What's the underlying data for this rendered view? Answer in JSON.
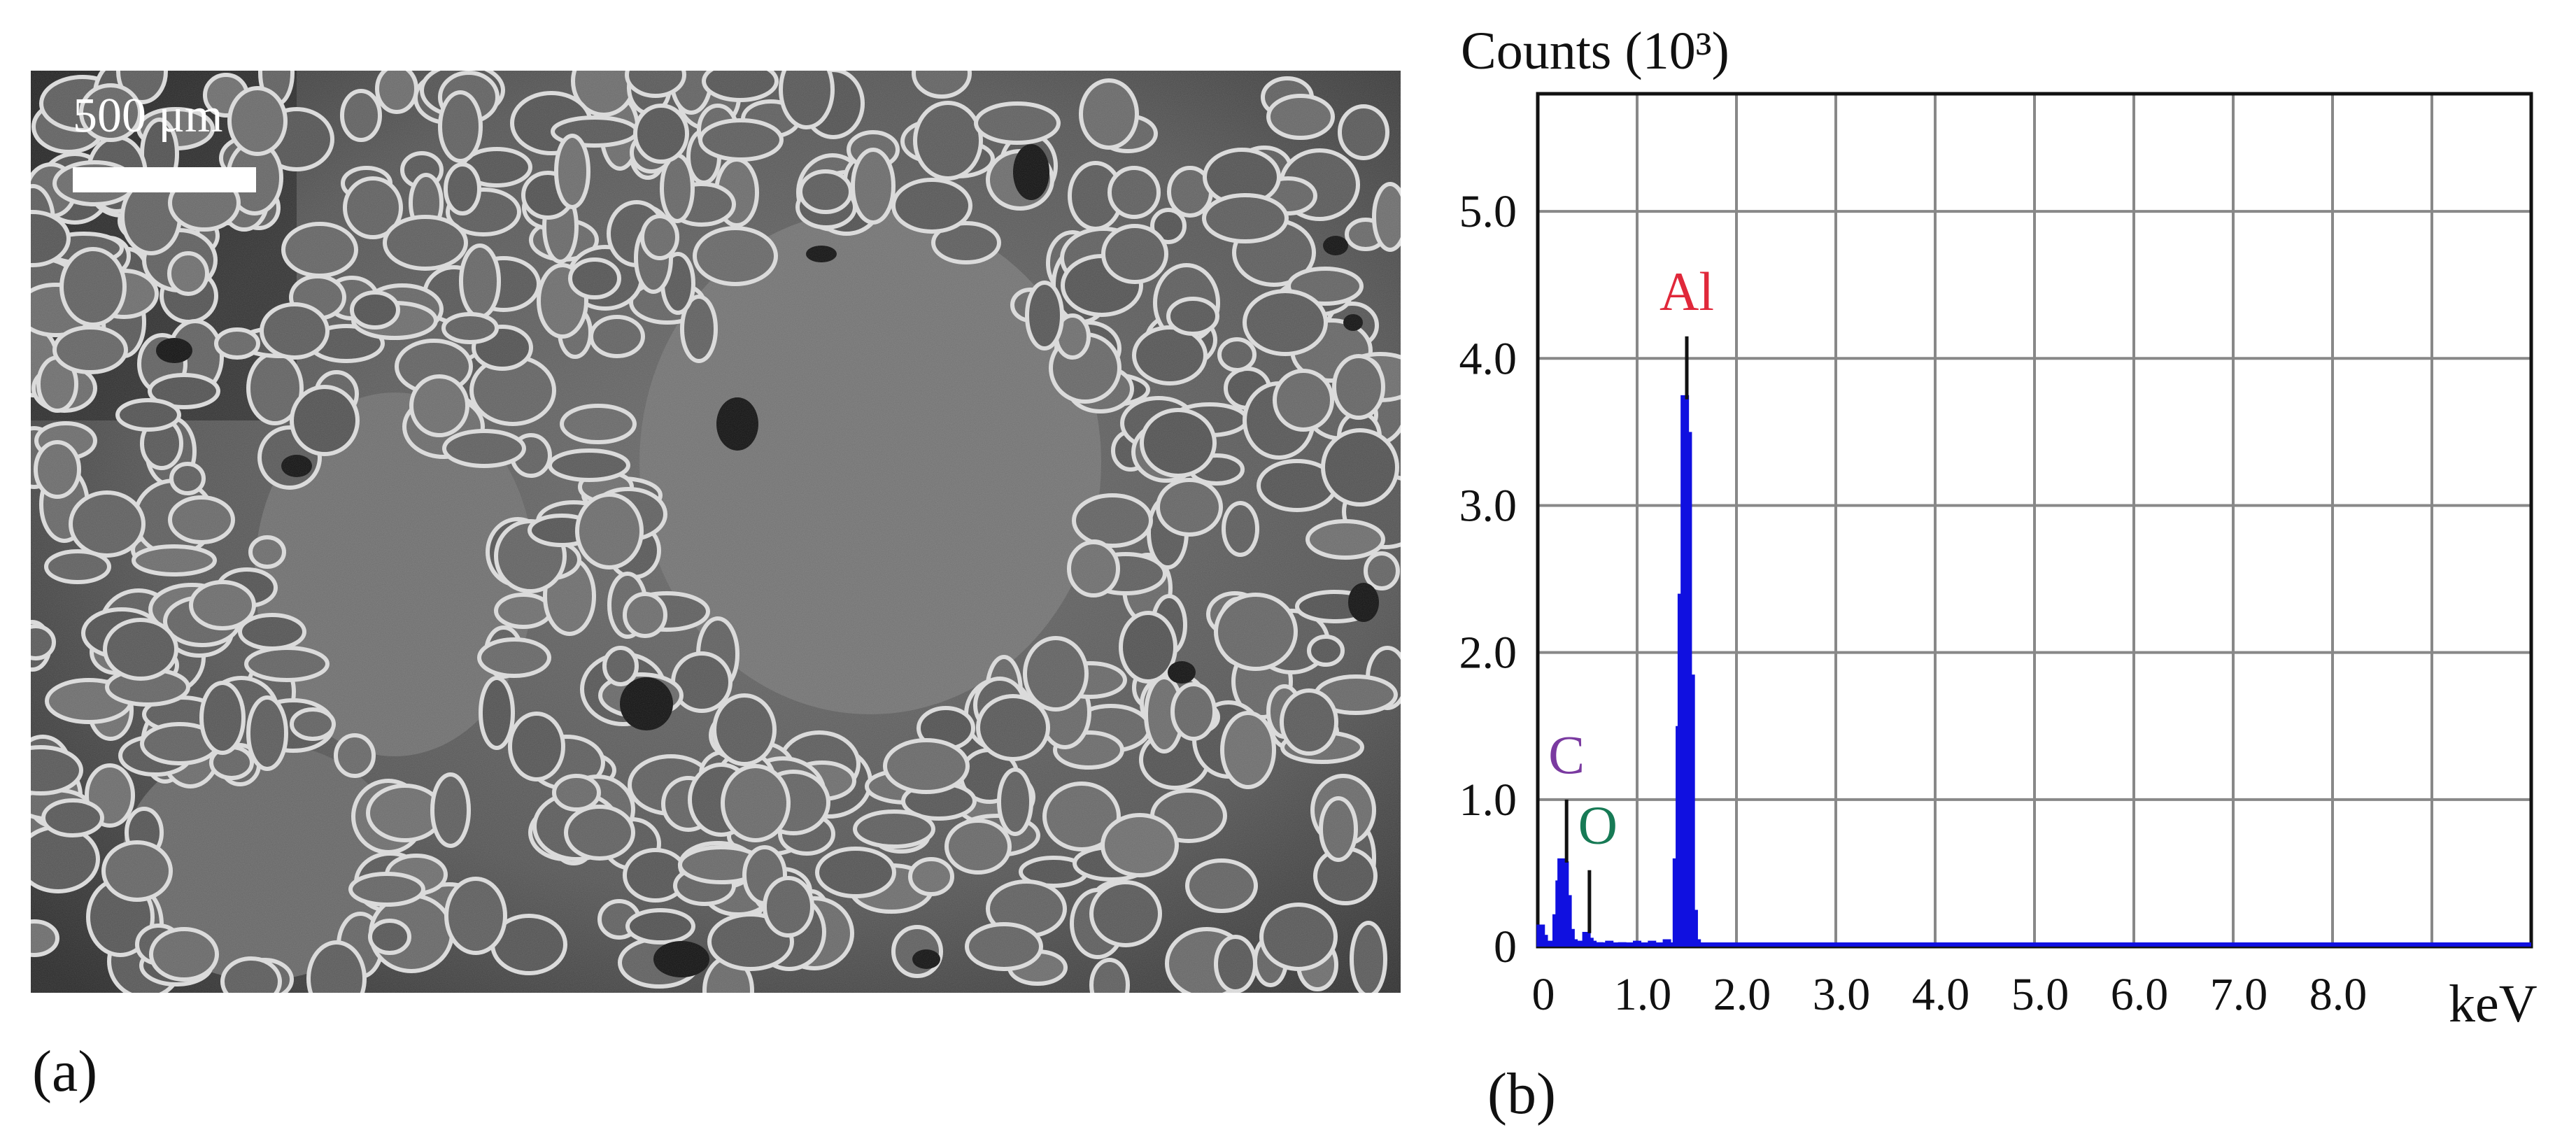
{
  "panel_a": {
    "label": "(a)",
    "scale_bar_label": "500 μm"
  },
  "panel_b": {
    "label": "(b)"
  },
  "chart_data": {
    "type": "bar",
    "title": "",
    "xlabel": "keV",
    "ylabel": "Counts (10³)",
    "xlim": [
      0,
      10
    ],
    "ylim": [
      0,
      5.8
    ],
    "grid": true,
    "legend": "none",
    "bar_color": "#1010e0",
    "x_ticks": [
      0,
      1.0,
      2.0,
      3.0,
      4.0,
      5.0,
      6.0,
      7.0,
      8.0
    ],
    "x_tick_labels": [
      "0",
      "1.0",
      "2.0",
      "3.0",
      "4.0",
      "5.0",
      "6.0",
      "7.0",
      "8.0"
    ],
    "y_ticks": [
      0,
      1.0,
      2.0,
      3.0,
      4.0,
      5.0
    ],
    "y_tick_labels": [
      "0",
      "1.0",
      "2.0",
      "3.0",
      "4.0",
      "5.0"
    ],
    "x": [
      0.03,
      0.06,
      0.12,
      0.19,
      0.22,
      0.24,
      0.27,
      0.3,
      0.33,
      0.36,
      0.39,
      0.44,
      0.49,
      0.52,
      0.55,
      0.62,
      0.72,
      0.85,
      1.0,
      1.15,
      1.3,
      1.4,
      1.43,
      1.45,
      1.48,
      1.51,
      1.54,
      1.57,
      1.6,
      1.63,
      1.7,
      2.0,
      3.0,
      4.0,
      5.0,
      6.0,
      7.0,
      8.0,
      9.0,
      9.9
    ],
    "values": [
      0.15,
      0.08,
      0.04,
      0.22,
      0.45,
      0.6,
      0.58,
      0.35,
      0.12,
      0.05,
      0.03,
      0.04,
      0.1,
      0.06,
      0.04,
      0.03,
      0.04,
      0.03,
      0.04,
      0.04,
      0.05,
      0.6,
      1.5,
      2.4,
      3.75,
      3.5,
      1.85,
      0.25,
      0.05,
      0.02,
      0.02,
      0.02,
      0.02,
      0.02,
      0.02,
      0.02,
      0.02,
      0.02,
      0.02,
      0.02
    ],
    "annotations": [
      {
        "text": "Al",
        "x": 1.5,
        "y": 4.15,
        "color": "#e0283a"
      },
      {
        "text": "C",
        "x": 0.29,
        "y": 1.0,
        "color": "#7a3aa0"
      },
      {
        "text": "O",
        "x": 0.52,
        "y": 0.52,
        "color": "#177a55"
      }
    ]
  }
}
